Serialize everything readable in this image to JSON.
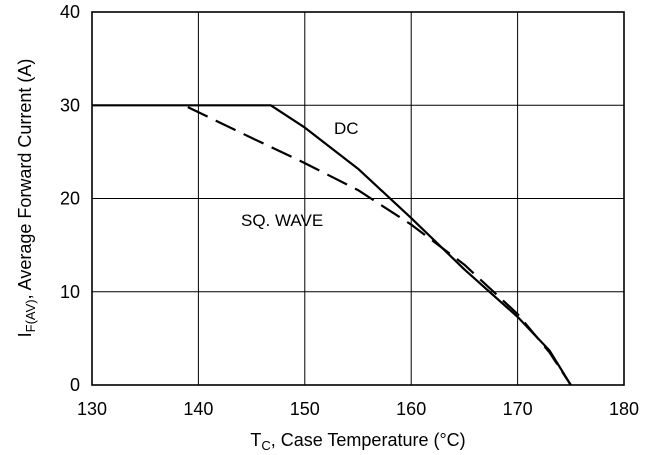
{
  "chart_data": {
    "type": "line",
    "xlabel_main": "T",
    "xlabel_sub": "C",
    "xlabel_rest": ", Case Temperature (°C)",
    "ylabel_main": "I",
    "ylabel_sub": "F(AV)",
    "ylabel_rest": ", Average Forward Current (A)",
    "xlim": [
      130,
      180
    ],
    "ylim": [
      0,
      40
    ],
    "x_ticks": [
      130,
      140,
      150,
      160,
      170,
      180
    ],
    "y_ticks": [
      0,
      10,
      20,
      30,
      40
    ],
    "x_tick_labels": [
      "130",
      "140",
      "150",
      "160",
      "170",
      "180"
    ],
    "y_tick_labels": [
      "0",
      "10",
      "20",
      "30",
      "40"
    ],
    "grid": true,
    "series": [
      {
        "name": "DC",
        "line_style": "solid",
        "points": [
          [
            130,
            30
          ],
          [
            146.8,
            30
          ],
          [
            150,
            27.6
          ],
          [
            155,
            23.2
          ],
          [
            160,
            17.9
          ],
          [
            165,
            12.4
          ],
          [
            170,
            7.3
          ],
          [
            173,
            3.7
          ],
          [
            175,
            0
          ]
        ]
      },
      {
        "name": "SQ. WAVE",
        "line_style": "dashed",
        "points": [
          [
            139,
            29.8
          ],
          [
            145,
            26.5
          ],
          [
            150,
            23.8
          ],
          [
            155,
            20.9
          ],
          [
            160,
            17.2
          ],
          [
            165,
            12.9
          ],
          [
            170,
            7.6
          ],
          [
            173,
            3.5
          ],
          [
            175,
            0
          ]
        ]
      }
    ],
    "colors": {
      "line": "#000000",
      "grid": "#000000",
      "background": "#ffffff"
    }
  }
}
